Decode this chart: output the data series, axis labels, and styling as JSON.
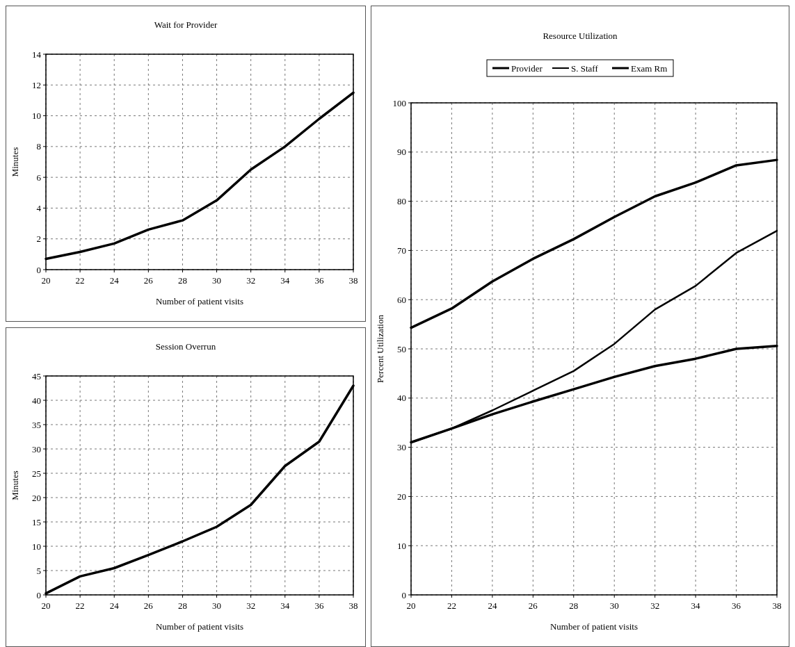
{
  "chart_data": [
    {
      "type": "line",
      "title": "Wait for Provider",
      "xlabel": "Number of patient visits",
      "ylabel": "Minutes",
      "x": [
        20,
        22,
        24,
        26,
        28,
        30,
        32,
        34,
        36,
        38
      ],
      "series": [
        {
          "color": "#000000",
          "values": [
            0.7,
            1.15,
            1.7,
            2.6,
            3.2,
            4.5,
            6.5,
            8.0,
            9.8,
            11.5
          ]
        }
      ],
      "xlim": [
        20,
        38
      ],
      "xticks": [
        20,
        22,
        24,
        26,
        28,
        30,
        32,
        34,
        36,
        38
      ],
      "ylim": [
        0,
        14
      ],
      "yticks": [
        0,
        2,
        4,
        6,
        8,
        10,
        12,
        14
      ],
      "grid": true,
      "legend": false
    },
    {
      "type": "line",
      "title": "Session Overrun",
      "xlabel": "Number of patient visits",
      "ylabel": "Minutes",
      "x": [
        20,
        22,
        24,
        26,
        28,
        30,
        32,
        34,
        36,
        38
      ],
      "series": [
        {
          "color": "#000000",
          "values": [
            0.3,
            3.8,
            5.5,
            8.2,
            11,
            14,
            18.5,
            26.5,
            31.5,
            43
          ]
        }
      ],
      "xlim": [
        20,
        38
      ],
      "xticks": [
        20,
        22,
        24,
        26,
        28,
        30,
        32,
        34,
        36,
        38
      ],
      "ylim": [
        0,
        45
      ],
      "yticks": [
        0,
        5,
        10,
        15,
        20,
        25,
        30,
        35,
        40,
        45
      ],
      "grid": true,
      "legend": false
    },
    {
      "type": "line",
      "title": "Resource Utilization",
      "xlabel": "Number of patient visits",
      "ylabel": "Percent Utilization",
      "x": [
        20,
        22,
        24,
        26,
        28,
        30,
        32,
        34,
        36,
        38
      ],
      "series": [
        {
          "name": "Provider",
          "color": "#000000",
          "values": [
            54.3,
            58.2,
            63.7,
            68.3,
            72.3,
            76.8,
            81,
            83.8,
            87.3,
            88.4
          ]
        },
        {
          "name": "S. Staff",
          "color": "#000000",
          "values": [
            31,
            33.8,
            37.5,
            41.5,
            45.5,
            51,
            58,
            62.8,
            69.5,
            74
          ]
        },
        {
          "name": "Exam Rm",
          "color": "#000000",
          "values": [
            31,
            33.8,
            36.7,
            39.3,
            41.8,
            44.3,
            46.5,
            48,
            50,
            50.6
          ]
        }
      ],
      "xlim": [
        20,
        38
      ],
      "xticks": [
        20,
        22,
        24,
        26,
        28,
        30,
        32,
        34,
        36,
        38
      ],
      "ylim": [
        0,
        100
      ],
      "yticks": [
        0,
        10,
        20,
        30,
        40,
        50,
        60,
        70,
        80,
        90,
        100
      ],
      "grid": true,
      "legend": "top"
    }
  ]
}
